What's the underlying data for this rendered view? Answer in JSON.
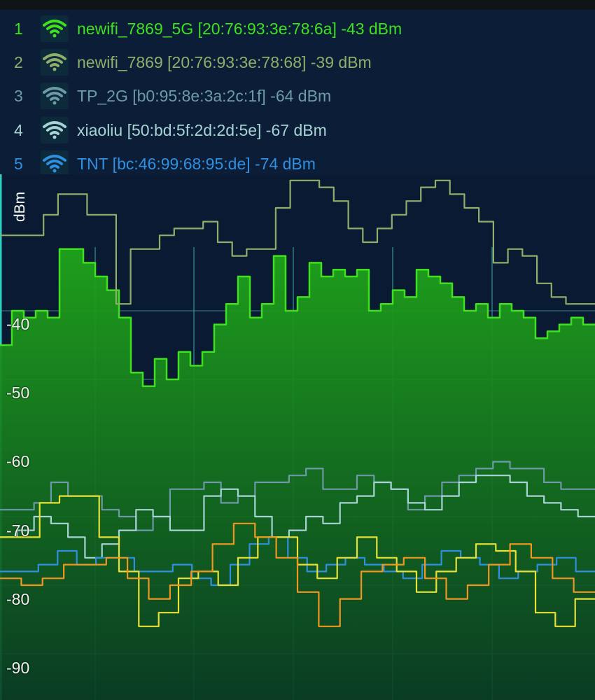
{
  "networks": [
    {
      "index": "1",
      "label": "newifi_7869_5G [20:76:93:3e:78:6a] -43 dBm",
      "color": "#3fe11e",
      "icon": "wifi-icon"
    },
    {
      "index": "2",
      "label": "newifi_7869 [20:76:93:3e:78:68] -39 dBm",
      "color": "#8fae6a",
      "icon": "wifi-icon"
    },
    {
      "index": "3",
      "label": "TP_2G [b0:95:8e:3a:2c:1f] -64 dBm",
      "color": "#6d9aa7",
      "icon": "wifi-icon"
    },
    {
      "index": "4",
      "label": "xiaoliu [50:bd:5f:2d:2d:5e] -67 dBm",
      "color": "#a6d3d3",
      "icon": "wifi-icon"
    },
    {
      "index": "5",
      "label": "TNT [bc:46:99:68:95:de] -74 dBm",
      "color": "#2f8fe0",
      "icon": "wifi-icon"
    }
  ],
  "chart": {
    "ylabel": "dBm",
    "ticks": [
      "-40",
      "-50",
      "-60",
      "-70",
      "-80",
      "-90"
    ]
  },
  "chart_data": {
    "type": "line",
    "ylabel": "dBm",
    "ylim": [
      -96,
      -20
    ],
    "grid": true,
    "series": [
      {
        "name": "newifi_7869_5G",
        "color": "#3fe11e",
        "filled": true,
        "values": [
          -45,
          -40,
          -41,
          -40,
          -41,
          -31,
          -31,
          -33,
          -35,
          -37,
          -41,
          -49,
          -51,
          -47,
          -50,
          -46,
          -48,
          -46,
          -42,
          -39,
          -35,
          -41,
          -39,
          -32,
          -40,
          -38,
          -33,
          -35,
          -34,
          -35,
          -34,
          -40,
          -39,
          -37,
          -38,
          -34,
          -35,
          -36,
          -38,
          -40,
          -39,
          -41,
          -39,
          -40,
          -41,
          -44,
          -43,
          -42,
          -41,
          -42
        ]
      },
      {
        "name": "newifi_7869",
        "color": "#8fae6a",
        "filled": false,
        "values": [
          -29,
          -29,
          -29,
          -26,
          -23,
          -23,
          -26,
          -26,
          -39,
          -31,
          -31,
          -29,
          -28,
          -28,
          -27,
          -30,
          -32,
          -31,
          -31,
          -25,
          -21,
          -21,
          -22,
          -24,
          -28,
          -30,
          -28,
          -26,
          -24,
          -22,
          -21,
          -23,
          -25,
          -27,
          -33,
          -31,
          -32,
          -36,
          -38,
          -39,
          -39
        ]
      },
      {
        "name": "TP_2G",
        "color": "#6d9aa7",
        "filled": false,
        "values": [
          -69,
          -69,
          -68,
          -65,
          -67,
          -67,
          -69,
          -70,
          -72,
          -70,
          -66,
          -66,
          -65,
          -68,
          -67,
          -65,
          -65,
          -64,
          -63,
          -66,
          -66,
          -64,
          -65,
          -66,
          -69,
          -67,
          -65,
          -64,
          -63,
          -62,
          -63,
          -63,
          -65,
          -66,
          -66
        ]
      },
      {
        "name": "xiaoliu",
        "color": "#a6d3d3",
        "filled": false,
        "values": [
          -73,
          -72,
          -70,
          -71,
          -73,
          -76,
          -74,
          -72,
          -69,
          -70,
          -72,
          -72,
          -67,
          -66,
          -67,
          -70,
          -73,
          -72,
          -70,
          -71,
          -68,
          -67,
          -65,
          -66,
          -68,
          -69,
          -67,
          -65,
          -64,
          -64,
          -65,
          -67,
          -68,
          -69,
          -70
        ]
      },
      {
        "name": "TNT",
        "color": "#2f8fe0",
        "filled": false,
        "values": [
          -78,
          -78,
          -77,
          -75,
          -77,
          -76,
          -76,
          -78,
          -78,
          -77,
          -79,
          -80,
          -77,
          -74,
          -73,
          -76,
          -78,
          -77,
          -76,
          -77,
          -78,
          -79,
          -77,
          -75,
          -76,
          -77,
          -79,
          -78,
          -77,
          -76,
          -78
        ]
      },
      {
        "name": "",
        "color": "#e8e035",
        "filled": false,
        "values": [
          -73,
          -73,
          -68,
          -67,
          -67,
          -73,
          -78,
          -86,
          -84,
          -79,
          -78,
          -80,
          -76,
          -73,
          -73,
          -77,
          -79,
          -76,
          -73,
          -76,
          -78,
          -81,
          -78,
          -76,
          -74,
          -75,
          -78,
          -84,
          -86,
          -82
        ]
      },
      {
        "name": "",
        "color": "#f0961e",
        "filled": false,
        "values": [
          -79,
          -80,
          -79,
          -77,
          -77,
          -76,
          -79,
          -82,
          -80,
          -78,
          -74,
          -71,
          -73,
          -76,
          -81,
          -86,
          -82,
          -78,
          -77,
          -76,
          -79,
          -82,
          -80,
          -77,
          -74,
          -76,
          -79,
          -81
        ]
      }
    ]
  }
}
